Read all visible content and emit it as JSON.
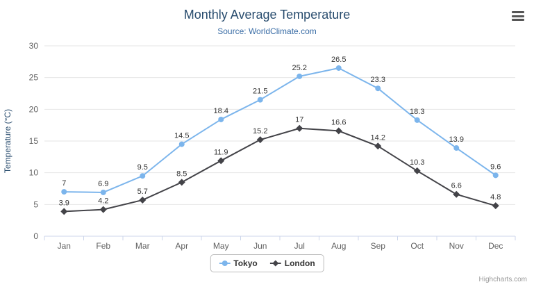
{
  "chart_data": {
    "type": "line",
    "title": "Monthly Average Temperature",
    "subtitle": "Source: WorldClimate.com",
    "categories": [
      "Jan",
      "Feb",
      "Mar",
      "Apr",
      "May",
      "Jun",
      "Jul",
      "Aug",
      "Sep",
      "Oct",
      "Nov",
      "Dec"
    ],
    "series": [
      {
        "name": "Tokyo",
        "color": "#7cb5ec",
        "marker": "circle",
        "values": [
          7,
          6.9,
          9.5,
          14.5,
          18.4,
          21.5,
          25.2,
          26.5,
          23.3,
          18.3,
          13.9,
          9.6
        ]
      },
      {
        "name": "London",
        "color": "#434348",
        "marker": "diamond",
        "values": [
          3.9,
          4.2,
          5.7,
          8.5,
          11.9,
          15.2,
          17,
          16.6,
          14.2,
          10.3,
          6.6,
          4.8
        ]
      }
    ],
    "xlabel": "",
    "ylabel": "Temperature (°C)",
    "ylim": [
      0,
      30
    ],
    "ytick_interval": 5,
    "grid": true,
    "data_labels": true,
    "legend_position": "bottom-center"
  },
  "chrome": {
    "credits": "Highcharts.com",
    "menu_icon": "hamburger-menu-icon"
  },
  "style": {
    "title_color": "#274b6d",
    "subtitle_color": "#3a6da6",
    "grid_color": "#e6e6e6",
    "axis_line_color": "#ccd6eb",
    "axis_label_color": "#606060",
    "yaxis_title_color": "#274b6d",
    "data_label_color": "#333333",
    "legend_text_color": "#333333",
    "legend_border_color": "#bbbbbb",
    "credits_color": "#999999"
  }
}
